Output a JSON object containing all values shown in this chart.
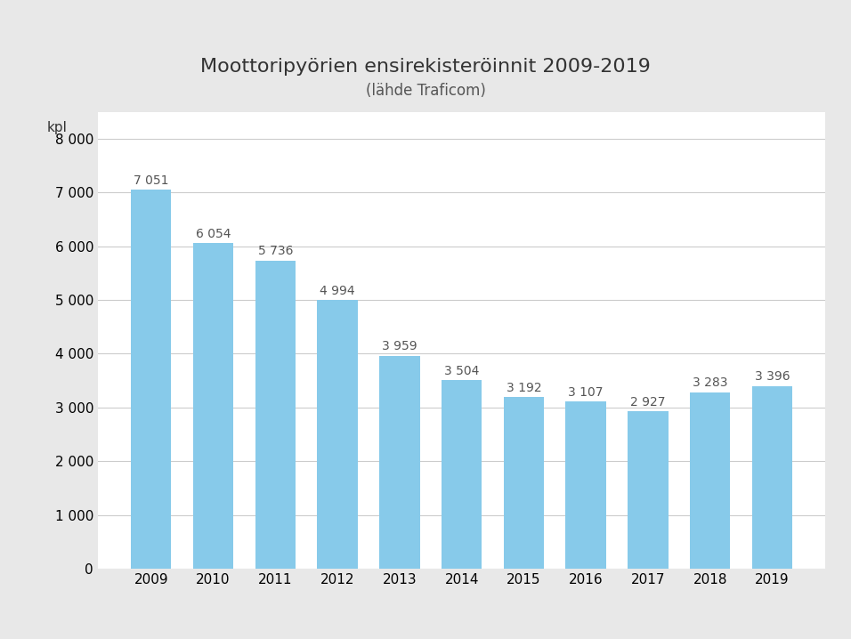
{
  "title": "Moottoripyörien ensirekisteröinnit 2009-2019",
  "subtitle": "(lähde Traficom)",
  "ylabel": "kpl",
  "years": [
    "2009",
    "2010",
    "2011",
    "2012",
    "2013",
    "2014",
    "2015",
    "2016",
    "2017",
    "2018",
    "2019"
  ],
  "values": [
    7051,
    6054,
    5736,
    4994,
    3959,
    3504,
    3192,
    3107,
    2927,
    3283,
    3396
  ],
  "bar_color": "#87CAEA",
  "background_color": "#E8E8E8",
  "plot_background": "#FFFFFF",
  "ylim": [
    0,
    8500
  ],
  "yticks": [
    0,
    1000,
    2000,
    3000,
    4000,
    5000,
    6000,
    7000,
    8000
  ],
  "title_fontsize": 16,
  "subtitle_fontsize": 12,
  "tick_fontsize": 11,
  "ylabel_fontsize": 11,
  "value_label_fontsize": 10
}
